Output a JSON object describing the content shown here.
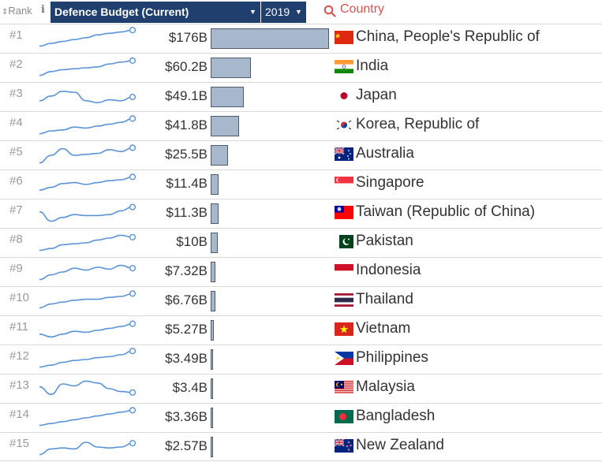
{
  "header": {
    "rank_label": "Rank",
    "metric_label": "Defence Budget (Current)",
    "year_label": "2019",
    "search_label": "Country"
  },
  "colors": {
    "header_bg": "#1f3f6e",
    "bar_fill": "#a8b8cc",
    "sparkline": "#5b93d6",
    "search_accent": "#d9534f"
  },
  "rows": [
    {
      "rank": "#1",
      "value": "$176B",
      "amount": 176,
      "country": "China, People's Republic of",
      "flag": "china-flag-icon",
      "trend": [
        0.1,
        0.25,
        0.35,
        0.45,
        0.55,
        0.7,
        0.78,
        0.85,
        0.95
      ]
    },
    {
      "rank": "#2",
      "value": "$60.2B",
      "amount": 60.2,
      "country": "India",
      "flag": "india-flag-icon",
      "trend": [
        0.1,
        0.3,
        0.4,
        0.45,
        0.5,
        0.55,
        0.7,
        0.8,
        0.88
      ]
    },
    {
      "rank": "#3",
      "value": "$49.1B",
      "amount": 49.1,
      "country": "Japan",
      "flag": "japan-flag-icon",
      "trend": [
        0.3,
        0.55,
        0.8,
        0.75,
        0.3,
        0.2,
        0.35,
        0.3,
        0.5
      ]
    },
    {
      "rank": "#4",
      "value": "$41.8B",
      "amount": 41.8,
      "country": "Korea, Republic of",
      "flag": "south-korea-flag-icon",
      "trend": [
        0.1,
        0.25,
        0.3,
        0.45,
        0.4,
        0.5,
        0.6,
        0.7,
        0.9
      ]
    },
    {
      "rank": "#5",
      "value": "$25.5B",
      "amount": 25.5,
      "country": "Australia",
      "flag": "australia-flag-icon",
      "trend": [
        0.1,
        0.5,
        0.85,
        0.5,
        0.55,
        0.6,
        0.8,
        0.7,
        0.9
      ]
    },
    {
      "rank": "#6",
      "value": "$11.4B",
      "amount": 11.4,
      "country": "Singapore",
      "flag": "singapore-flag-icon",
      "trend": [
        0.2,
        0.35,
        0.55,
        0.6,
        0.5,
        0.6,
        0.7,
        0.75,
        0.9
      ]
    },
    {
      "rank": "#7",
      "value": "$11.3B",
      "amount": 11.3,
      "country": "Taiwan (Republic of China)",
      "flag": "taiwan-flag-icon",
      "trend": [
        0.6,
        0.1,
        0.3,
        0.45,
        0.4,
        0.4,
        0.45,
        0.65,
        0.85
      ]
    },
    {
      "rank": "#8",
      "value": "$10B",
      "amount": 10,
      "country": "Pakistan",
      "flag": "pakistan-flag-icon",
      "trend": [
        0.1,
        0.2,
        0.4,
        0.45,
        0.5,
        0.65,
        0.75,
        0.9,
        0.8
      ]
    },
    {
      "rank": "#9",
      "value": "$7.32B",
      "amount": 7.32,
      "country": "Indonesia",
      "flag": "indonesia-flag-icon",
      "trend": [
        0.1,
        0.35,
        0.5,
        0.7,
        0.6,
        0.75,
        0.65,
        0.85,
        0.7
      ]
    },
    {
      "rank": "#10",
      "value": "$6.76B",
      "amount": 6.76,
      "country": "Thailand",
      "flag": "thailand-flag-icon",
      "trend": [
        0.15,
        0.35,
        0.45,
        0.55,
        0.6,
        0.6,
        0.7,
        0.75,
        0.9
      ]
    },
    {
      "rank": "#11",
      "value": "$5.27B",
      "amount": 5.27,
      "country": "Vietnam",
      "flag": "vietnam-flag-icon",
      "trend": [
        0.3,
        0.15,
        0.3,
        0.45,
        0.4,
        0.5,
        0.6,
        0.7,
        0.85
      ]
    },
    {
      "rank": "#12",
      "value": "$3.49B",
      "amount": 3.49,
      "country": "Philippines",
      "flag": "philippines-flag-icon",
      "trend": [
        0.1,
        0.2,
        0.35,
        0.45,
        0.5,
        0.6,
        0.65,
        0.75,
        0.95
      ]
    },
    {
      "rank": "#13",
      "value": "$3.4B",
      "amount": 3.4,
      "country": "Malaysia",
      "flag": "malaysia-flag-icon",
      "trend": [
        0.6,
        0.2,
        0.75,
        0.65,
        0.9,
        0.8,
        0.5,
        0.35,
        0.3
      ]
    },
    {
      "rank": "#14",
      "value": "$3.36B",
      "amount": 3.36,
      "country": "Bangladesh",
      "flag": "bangladesh-flag-icon",
      "trend": [
        0.1,
        0.2,
        0.3,
        0.4,
        0.5,
        0.6,
        0.7,
        0.8,
        0.9
      ]
    },
    {
      "rank": "#15",
      "value": "$2.57B",
      "amount": 2.57,
      "country": "New Zealand",
      "flag": "new-zealand-flag-icon",
      "trend": [
        0.1,
        0.4,
        0.45,
        0.4,
        0.75,
        0.5,
        0.45,
        0.5,
        0.7
      ]
    }
  ]
}
